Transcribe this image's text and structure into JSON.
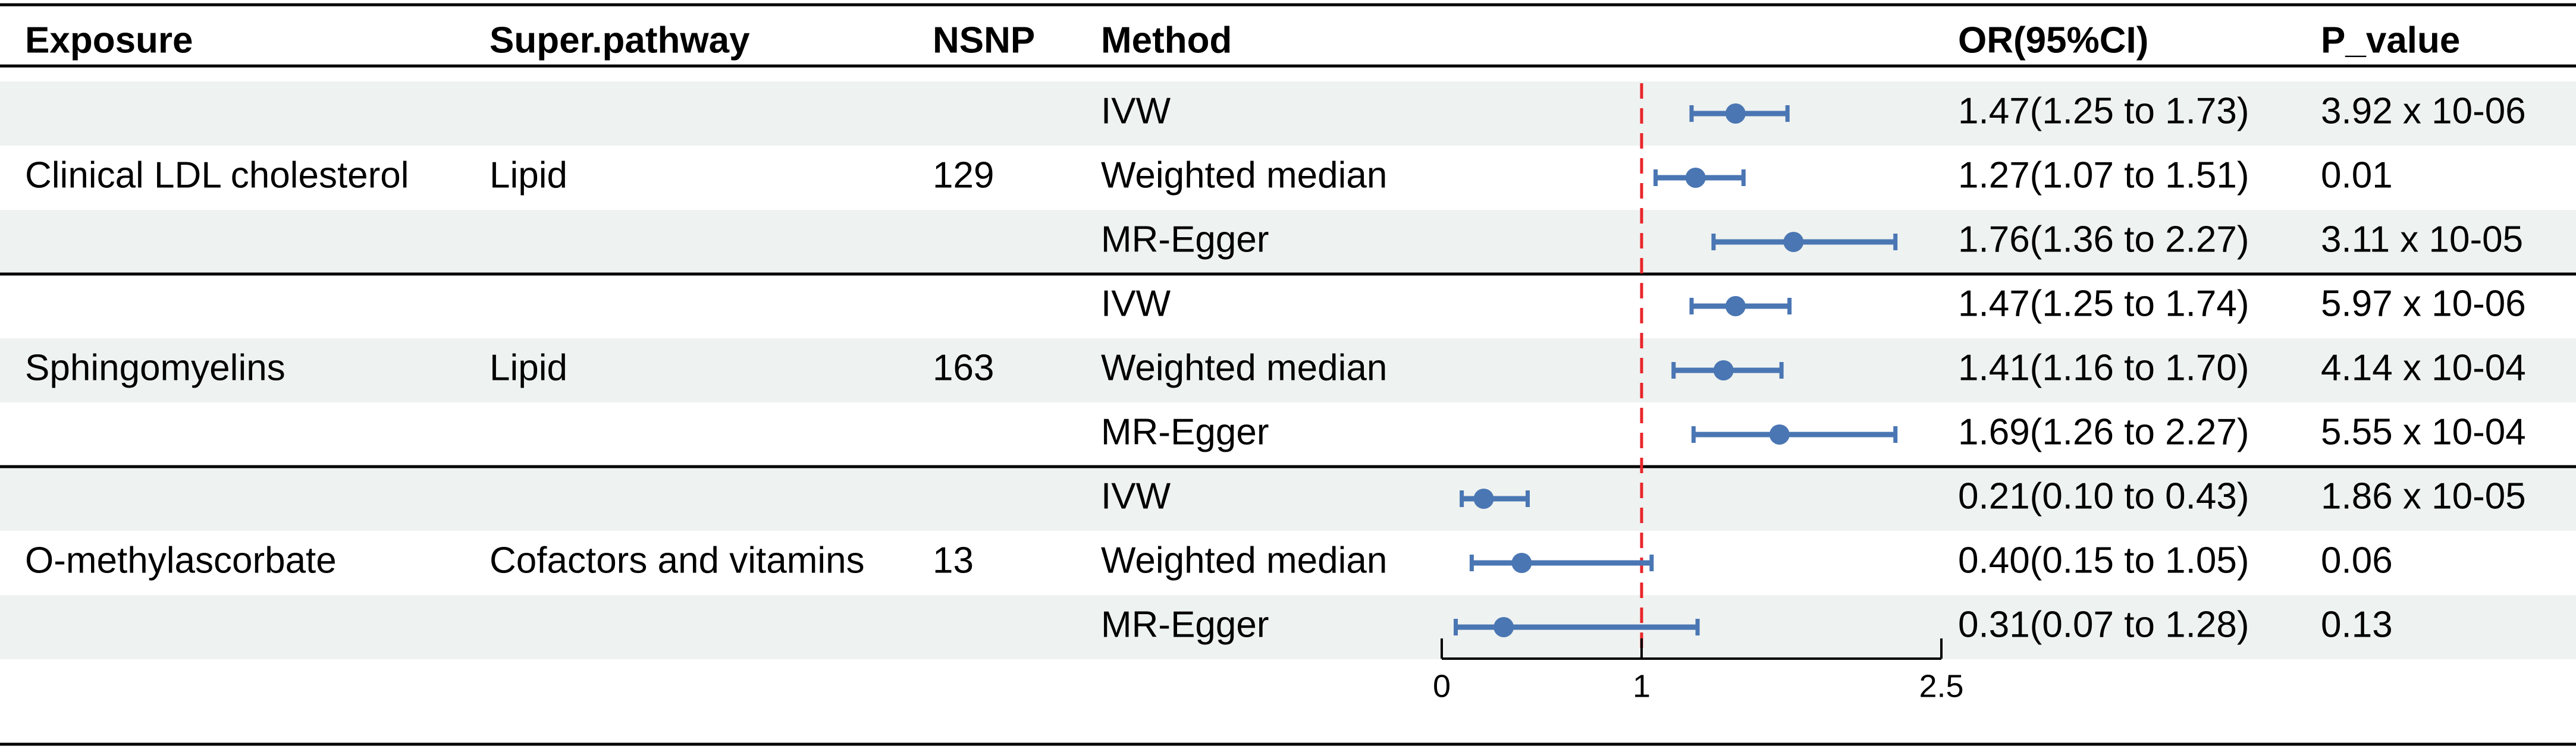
{
  "chart_data": {
    "type": "forest",
    "columns": [
      "Exposure",
      "Super.pathway",
      "NSNP",
      "Method",
      "OR(95%CI)",
      "P_value"
    ],
    "groups": [
      {
        "exposure": "Clinical LDL cholesterol",
        "pathway": "Lipid",
        "nsnp": "129",
        "rows": [
          {
            "method": "IVW",
            "or": 1.47,
            "lo": 1.25,
            "hi": 1.73,
            "ci_text": "1.47(1.25 to 1.73)",
            "p": "3.92 x 10-06"
          },
          {
            "method": "Weighted median",
            "or": 1.27,
            "lo": 1.07,
            "hi": 1.51,
            "ci_text": "1.27(1.07 to 1.51)",
            "p": "0.01"
          },
          {
            "method": "MR-Egger",
            "or": 1.76,
            "lo": 1.36,
            "hi": 2.27,
            "ci_text": "1.76(1.36 to 2.27)",
            "p": "3.11 x 10-05"
          }
        ]
      },
      {
        "exposure": "Sphingomyelins",
        "pathway": "Lipid",
        "nsnp": "163",
        "rows": [
          {
            "method": "IVW",
            "or": 1.47,
            "lo": 1.25,
            "hi": 1.74,
            "ci_text": "1.47(1.25 to 1.74)",
            "p": "5.97 x 10-06"
          },
          {
            "method": "Weighted median",
            "or": 1.41,
            "lo": 1.16,
            "hi": 1.7,
            "ci_text": "1.41(1.16 to 1.70)",
            "p": "4.14 x 10-04"
          },
          {
            "method": "MR-Egger",
            "or": 1.69,
            "lo": 1.26,
            "hi": 2.27,
            "ci_text": "1.69(1.26 to 2.27)",
            "p": "5.55 x 10-04"
          }
        ]
      },
      {
        "exposure": "O-methylascorbate",
        "pathway": "Cofactors and vitamins",
        "nsnp": "13",
        "rows": [
          {
            "method": "IVW",
            "or": 0.21,
            "lo": 0.1,
            "hi": 0.43,
            "ci_text": "0.21(0.10 to 0.43)",
            "p": "1.86 x 10-05"
          },
          {
            "method": "Weighted median",
            "or": 0.4,
            "lo": 0.15,
            "hi": 1.05,
            "ci_text": "0.40(0.15 to 1.05)",
            "p": "0.06"
          },
          {
            "method": "MR-Egger",
            "or": 0.31,
            "lo": 0.07,
            "hi": 1.28,
            "ci_text": "0.31(0.07 to 1.28)",
            "p": "0.13"
          }
        ]
      }
    ],
    "x_axis": {
      "ticks": [
        0,
        1,
        2.5
      ],
      "tick_labels": [
        "0",
        "1",
        "2.5"
      ],
      "xlim": [
        0,
        2.5
      ]
    },
    "reference_line": 1,
    "colors": {
      "estimate": "#4a76b3",
      "reference": "#e8262a",
      "stripe": "#eef2f0"
    }
  }
}
